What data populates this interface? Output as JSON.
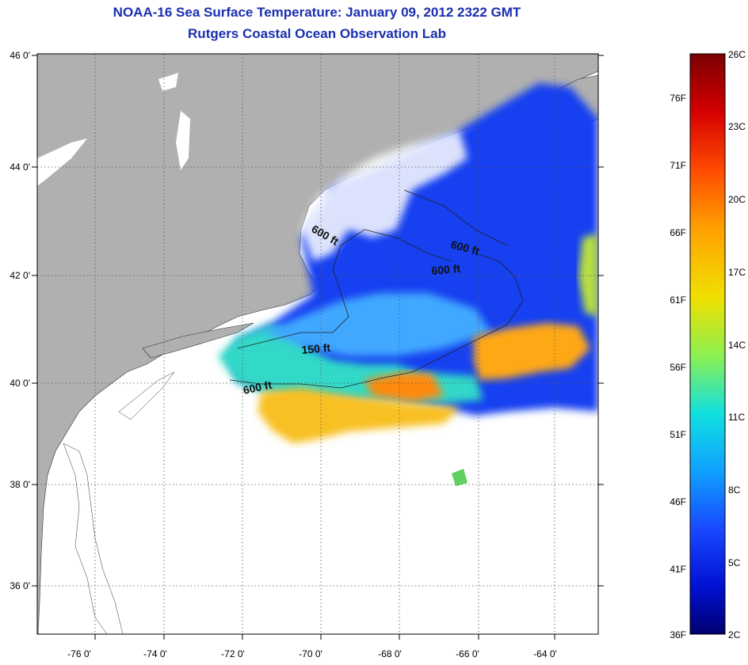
{
  "title_line1": "NOAA-16 Sea Surface Temperature:  January 09, 2012 2322 GMT",
  "title_line2": "Rutgers Coastal Ocean Observation Lab",
  "map": {
    "lat_ticks": [
      "46 0'",
      "44 0'",
      "42 0'",
      "40 0'",
      "38 0'",
      "36 0'"
    ],
    "lon_ticks": [
      "-76 0'",
      "-74 0'",
      "-72 0'",
      "-70 0'",
      "-68 0'",
      "-66 0'",
      "-64 0'"
    ],
    "contour_labels": [
      "600 ft",
      "600 ft",
      "600 ft",
      "150 ft",
      "600 ft"
    ],
    "colors": {
      "land": "#b0b0b0",
      "ocean": "#ffffff"
    }
  },
  "colorbar": {
    "celsius": [
      "26C",
      "23C",
      "20C",
      "17C",
      "14C",
      "11C",
      "8C",
      "5C",
      "2C"
    ],
    "fahrenheit": [
      "76F",
      "71F",
      "66F",
      "61F",
      "56F",
      "51F",
      "46F",
      "41F",
      "36F"
    ],
    "colors": [
      "#7a0000",
      "#d40000",
      "#ff4a00",
      "#ffa000",
      "#f0e000",
      "#8cf050",
      "#10e0e0",
      "#10a0ff",
      "#1848ff",
      "#0010d0",
      "#000070"
    ]
  }
}
